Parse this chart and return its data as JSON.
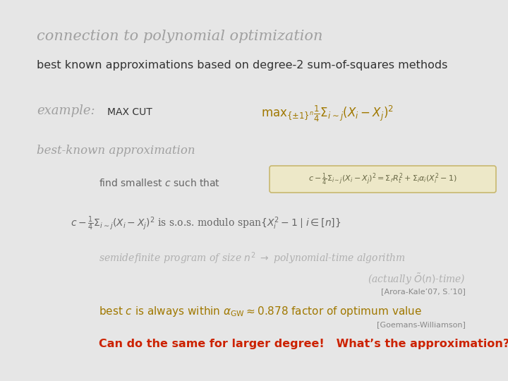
{
  "background_color": "#e6e6e6",
  "title": "connection to polynomial optimization",
  "title_color": "#a0a0a0",
  "title_fontsize": 15,
  "subtitle": "best known approximations based on degree-2 sum-of-squares methods",
  "subtitle_color": "#333333",
  "subtitle_fontsize": 11.5,
  "example_label": "example:",
  "example_label_color": "#a0a0a0",
  "example_cut_text": "MAX CUT",
  "example_cut_color": "#333333",
  "example_formula": "$\\mathrm{max}_{\\{\\pm 1\\}^n}\\frac{1}{4}\\Sigma_{i\\sim j}(X_i - X_j)^2$",
  "example_formula_color": "#a07800",
  "best_known_text": "best-known approximation",
  "best_known_color": "#a0a0a0",
  "find_smallest_text": "find smallest $c$ such that",
  "find_smallest_color": "#666666",
  "find_formula_box": "$c - \\frac{1}{4}\\Sigma_{i\\sim j}(X_i - X_j)^2 = \\Sigma_r R_t^2 + \\Sigma_i \\alpha_i(X_i^2 - 1)$",
  "find_formula_box_color": "#c8b870",
  "find_formula_box_bg": "#ede8c8",
  "find_formula_text_color": "#666644",
  "sos_line1": "$c - \\frac{1}{4}\\Sigma_{i\\sim j}(X_i - X_j)^2$",
  "sos_line2": " is s.o.s. modulo span$\\{X_i^2 - 1 \\mid i \\in [n]\\}$",
  "sos_color": "#666666",
  "sdp_line1": "semidefinite program of size $n^2$ $\\rightarrow$ polynomial-time algorithm",
  "sdp_line2": "(actually $\\tilde{O}(n)$-time)",
  "sdp_ref": "[Arora-Kale’07, S.’10]",
  "sdp_color": "#b0b0b0",
  "sdp_ref_color": "#888888",
  "alpha_line": "best $c$ is always within $\\alpha_{\\mathrm{GW}} \\approx 0.878$ factor of optimum value",
  "alpha_ref": "[Goemans-Williamson]",
  "alpha_color": "#a07800",
  "alpha_ref_color": "#888888",
  "last_line": "Can do the same for larger degree!   What’s the approximation?",
  "last_color": "#cc2200"
}
